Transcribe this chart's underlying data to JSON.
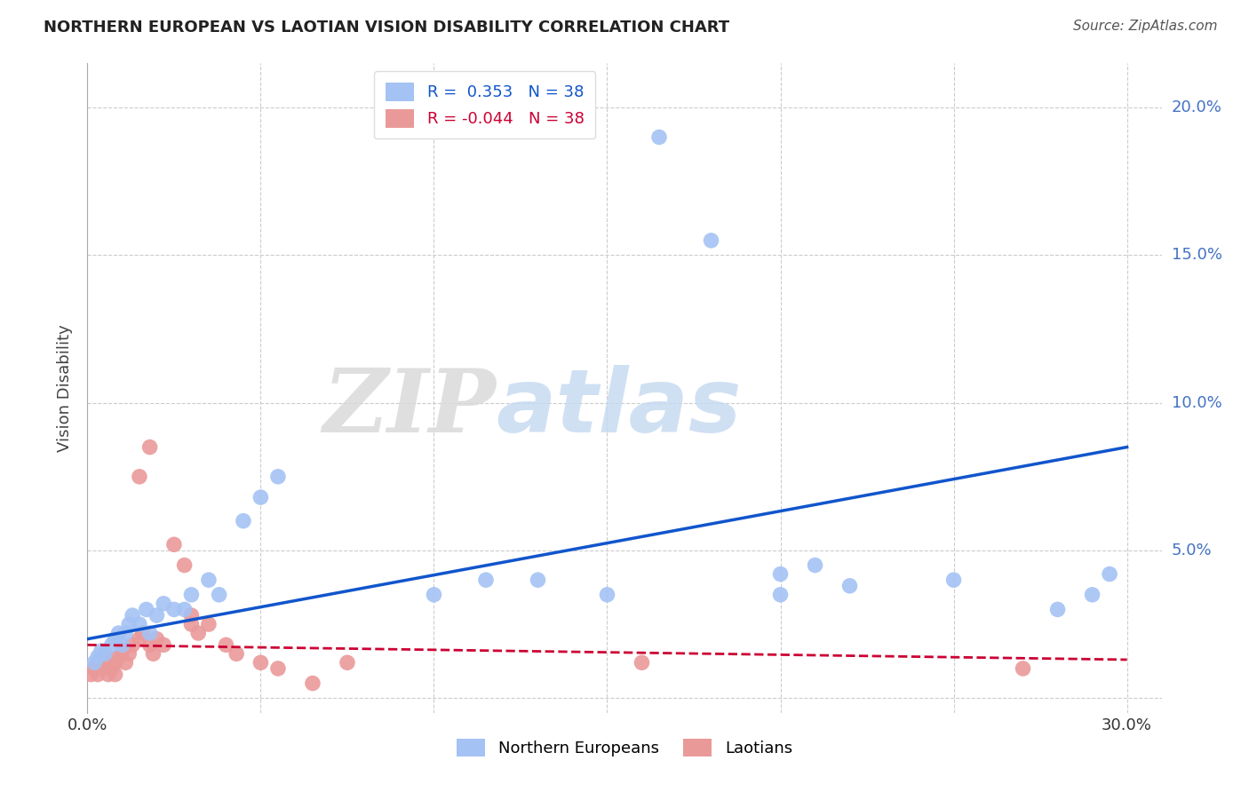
{
  "title": "NORTHERN EUROPEAN VS LAOTIAN VISION DISABILITY CORRELATION CHART",
  "source": "Source: ZipAtlas.com",
  "ylabel": "Vision Disability",
  "xlim": [
    0.0,
    0.31
  ],
  "ylim": [
    -0.005,
    0.215
  ],
  "xticks": [
    0.0,
    0.05,
    0.1,
    0.15,
    0.2,
    0.25,
    0.3
  ],
  "yticks": [
    0.0,
    0.05,
    0.1,
    0.15,
    0.2
  ],
  "r_blue": 0.353,
  "r_pink": -0.044,
  "n_blue": 38,
  "n_pink": 38,
  "blue_color": "#a4c2f4",
  "pink_color": "#ea9999",
  "trendline_blue": "#1155cc",
  "trendline_pink": "#cc0033",
  "watermark_zip": "ZIP",
  "watermark_atlas": "atlas",
  "background_color": "#ffffff",
  "grid_color": "#cccccc",
  "blue_x": [
    0.002,
    0.003,
    0.004,
    0.005,
    0.007,
    0.008,
    0.009,
    0.01,
    0.011,
    0.012,
    0.013,
    0.015,
    0.017,
    0.018,
    0.02,
    0.022,
    0.025,
    0.028,
    0.03,
    0.035,
    0.038,
    0.045,
    0.05,
    0.055,
    0.1,
    0.115,
    0.13,
    0.15,
    0.165,
    0.18,
    0.2,
    0.22,
    0.2,
    0.21,
    0.25,
    0.28,
    0.29,
    0.295
  ],
  "blue_y": [
    0.012,
    0.014,
    0.016,
    0.015,
    0.018,
    0.02,
    0.022,
    0.018,
    0.022,
    0.025,
    0.028,
    0.025,
    0.03,
    0.022,
    0.028,
    0.032,
    0.03,
    0.03,
    0.035,
    0.04,
    0.035,
    0.06,
    0.068,
    0.075,
    0.035,
    0.04,
    0.04,
    0.035,
    0.19,
    0.155,
    0.035,
    0.038,
    0.042,
    0.045,
    0.04,
    0.03,
    0.035,
    0.042
  ],
  "pink_x": [
    0.001,
    0.002,
    0.003,
    0.003,
    0.004,
    0.005,
    0.005,
    0.006,
    0.007,
    0.008,
    0.008,
    0.009,
    0.01,
    0.011,
    0.012,
    0.013,
    0.015,
    0.016,
    0.018,
    0.019,
    0.02,
    0.022,
    0.025,
    0.028,
    0.03,
    0.032,
    0.015,
    0.018,
    0.03,
    0.035,
    0.04,
    0.043,
    0.05,
    0.055,
    0.065,
    0.075,
    0.16,
    0.27
  ],
  "pink_y": [
    0.008,
    0.01,
    0.012,
    0.008,
    0.01,
    0.012,
    0.015,
    0.008,
    0.01,
    0.012,
    0.008,
    0.014,
    0.016,
    0.012,
    0.015,
    0.018,
    0.02,
    0.022,
    0.018,
    0.015,
    0.02,
    0.018,
    0.052,
    0.045,
    0.025,
    0.022,
    0.075,
    0.085,
    0.028,
    0.025,
    0.018,
    0.015,
    0.012,
    0.01,
    0.005,
    0.012,
    0.012,
    0.01
  ],
  "trendline_blue_x0": 0.0,
  "trendline_blue_x1": 0.3,
  "trendline_blue_y0": 0.02,
  "trendline_blue_y1": 0.085,
  "trendline_pink_x0": 0.0,
  "trendline_pink_x1": 0.3,
  "trendline_pink_y0": 0.018,
  "trendline_pink_y1": 0.013
}
